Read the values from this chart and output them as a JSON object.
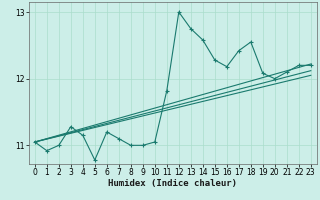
{
  "xlabel": "Humidex (Indice chaleur)",
  "xlim": [
    -0.5,
    23.5
  ],
  "ylim": [
    10.72,
    13.15
  ],
  "yticks": [
    11,
    12,
    13
  ],
  "xticks": [
    0,
    1,
    2,
    3,
    4,
    5,
    6,
    7,
    8,
    9,
    10,
    11,
    12,
    13,
    14,
    15,
    16,
    17,
    18,
    19,
    20,
    21,
    22,
    23
  ],
  "bg_color": "#cceee8",
  "grid_color": "#aaddcc",
  "line_color": "#1a7a6e",
  "main_line": {
    "x": [
      0,
      1,
      2,
      3,
      4,
      5,
      6,
      7,
      8,
      9,
      10,
      11,
      12,
      13,
      14,
      15,
      16,
      17,
      18,
      19,
      20,
      21,
      22,
      23
    ],
    "y": [
      11.05,
      10.92,
      11.0,
      11.28,
      11.15,
      10.78,
      11.2,
      11.1,
      11.0,
      11.0,
      11.05,
      11.82,
      13.0,
      12.75,
      12.58,
      12.28,
      12.18,
      12.42,
      12.55,
      12.08,
      12.0,
      12.1,
      12.2,
      12.2
    ]
  },
  "trend_lines": [
    {
      "x": [
        0,
        23
      ],
      "y": [
        11.05,
        12.22
      ]
    },
    {
      "x": [
        0,
        23
      ],
      "y": [
        11.05,
        12.12
      ]
    },
    {
      "x": [
        0,
        23
      ],
      "y": [
        11.05,
        12.05
      ]
    }
  ]
}
